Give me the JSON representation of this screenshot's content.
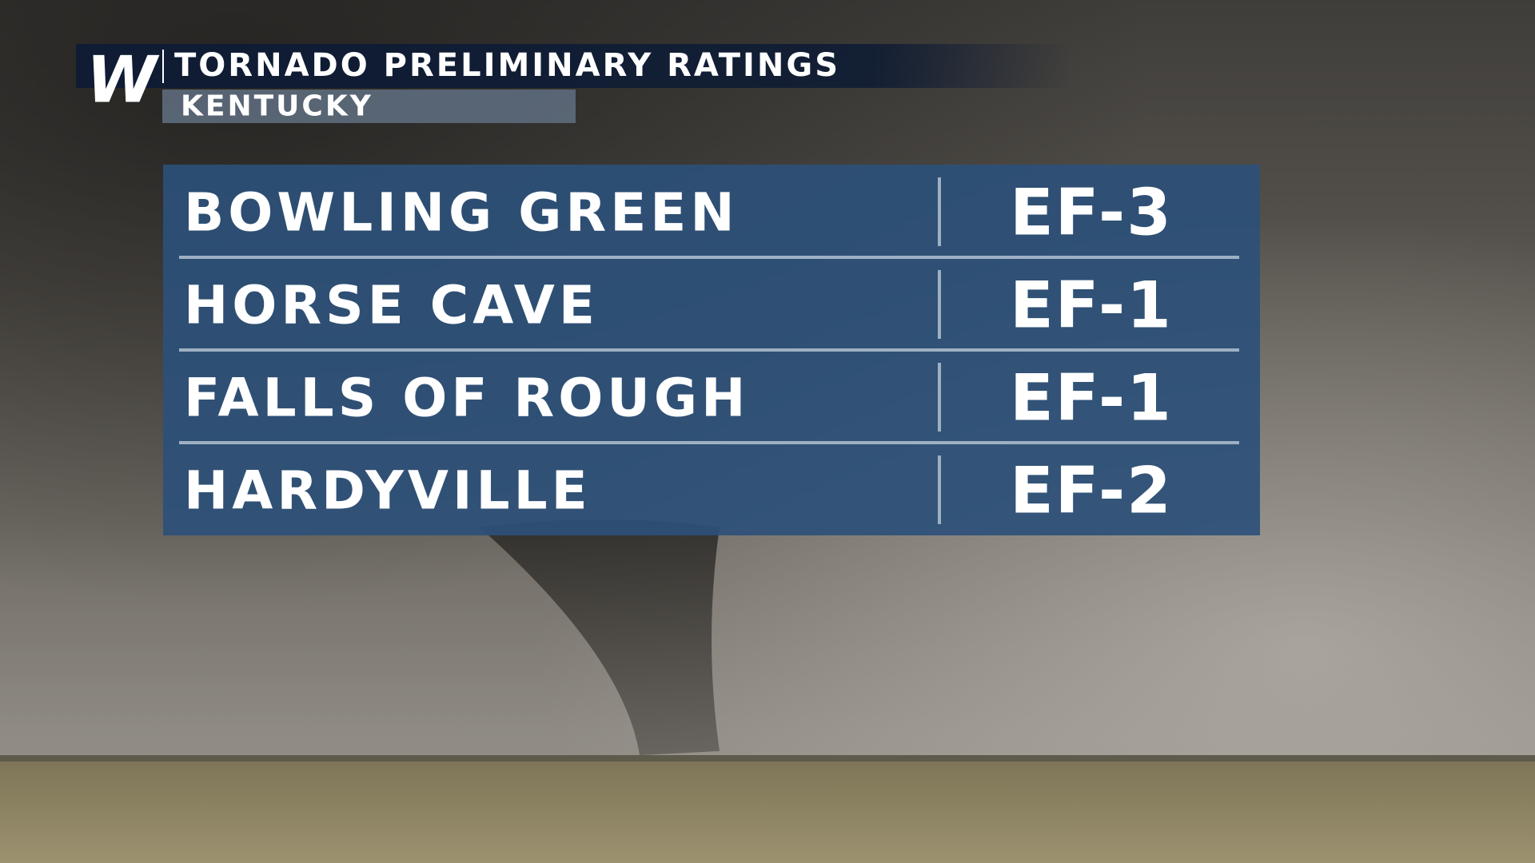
{
  "header": {
    "logo": "W",
    "title": "TORNADO PRELIMINARY RATINGS",
    "subtitle": "KENTUCKY"
  },
  "table": {
    "rows": [
      [
        "BOWLING GREEN",
        "EF-3"
      ],
      [
        "HORSE CAVE",
        "EF-1"
      ],
      [
        "FALLS OF ROUGH",
        "EF-1"
      ],
      [
        "HARDYVILLE",
        "EF-2"
      ]
    ]
  }
}
